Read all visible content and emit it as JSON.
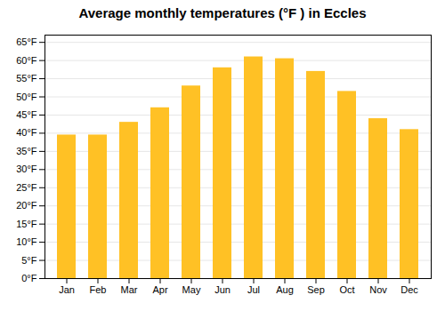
{
  "chart_data": {
    "type": "bar",
    "title": "Average monthly temperatures (°F ) in Eccles",
    "categories": [
      "Jan",
      "Feb",
      "Mar",
      "Apr",
      "May",
      "Jun",
      "Jul",
      "Aug",
      "Sep",
      "Oct",
      "Nov",
      "Dec"
    ],
    "values": [
      39.5,
      39.5,
      43.0,
      47.0,
      53.0,
      58.0,
      61.0,
      60.5,
      57.0,
      51.5,
      44.0,
      41.0
    ],
    "color": "#FFC125",
    "ylim": [
      0,
      67
    ],
    "yticks": [
      {
        "value": 0,
        "label": "0°F"
      },
      {
        "value": 5,
        "label": "5°F"
      },
      {
        "value": 10,
        "label": "10°F"
      },
      {
        "value": 15,
        "label": "15°F"
      },
      {
        "value": 20,
        "label": "20°F"
      },
      {
        "value": 25,
        "label": "25°F"
      },
      {
        "value": 30,
        "label": "30°F"
      },
      {
        "value": 35,
        "label": "35°F"
      },
      {
        "value": 40,
        "label": "40°F"
      },
      {
        "value": 45,
        "label": "45°F"
      },
      {
        "value": 50,
        "label": "50°F"
      },
      {
        "value": 55,
        "label": "55°F"
      },
      {
        "value": 60,
        "label": "60°F"
      },
      {
        "value": 65,
        "label": "65°F"
      }
    ],
    "grid": true
  }
}
